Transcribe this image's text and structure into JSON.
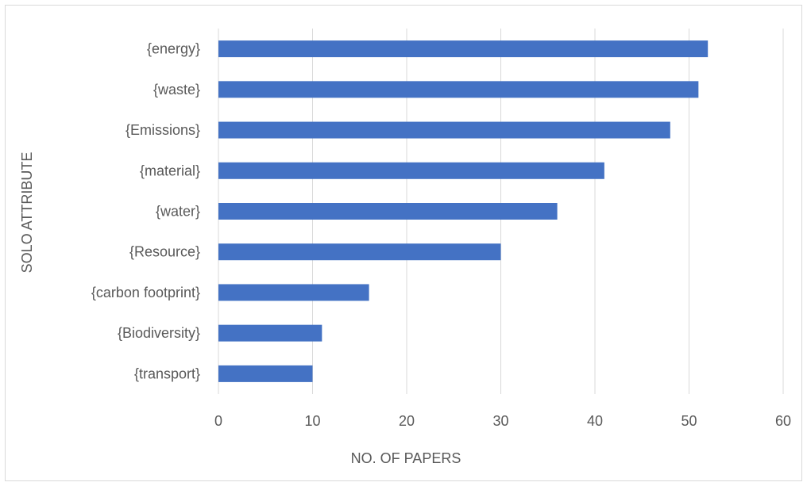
{
  "chart_data": {
    "type": "bar",
    "orientation": "horizontal",
    "categories": [
      "{energy}",
      "{waste}",
      "{Emissions}",
      "{material}",
      "{water}",
      "{Resource}",
      "{carbon footprint}",
      "{Biodiversity}",
      "{transport}"
    ],
    "values": [
      52,
      51,
      48,
      41,
      36,
      30,
      16,
      11,
      10
    ],
    "title": "",
    "xlabel": "NO. OF PAPERS",
    "ylabel": "SOLO ATTRIBUTE",
    "xlim": [
      0,
      60
    ],
    "xticks": [
      "0",
      "10",
      "20",
      "30",
      "40",
      "50",
      "60"
    ],
    "grid": "vertical",
    "legend": "none",
    "colors": {
      "bar": "#4472c4",
      "grid": "#d9d9d9",
      "text": "#595959"
    }
  }
}
